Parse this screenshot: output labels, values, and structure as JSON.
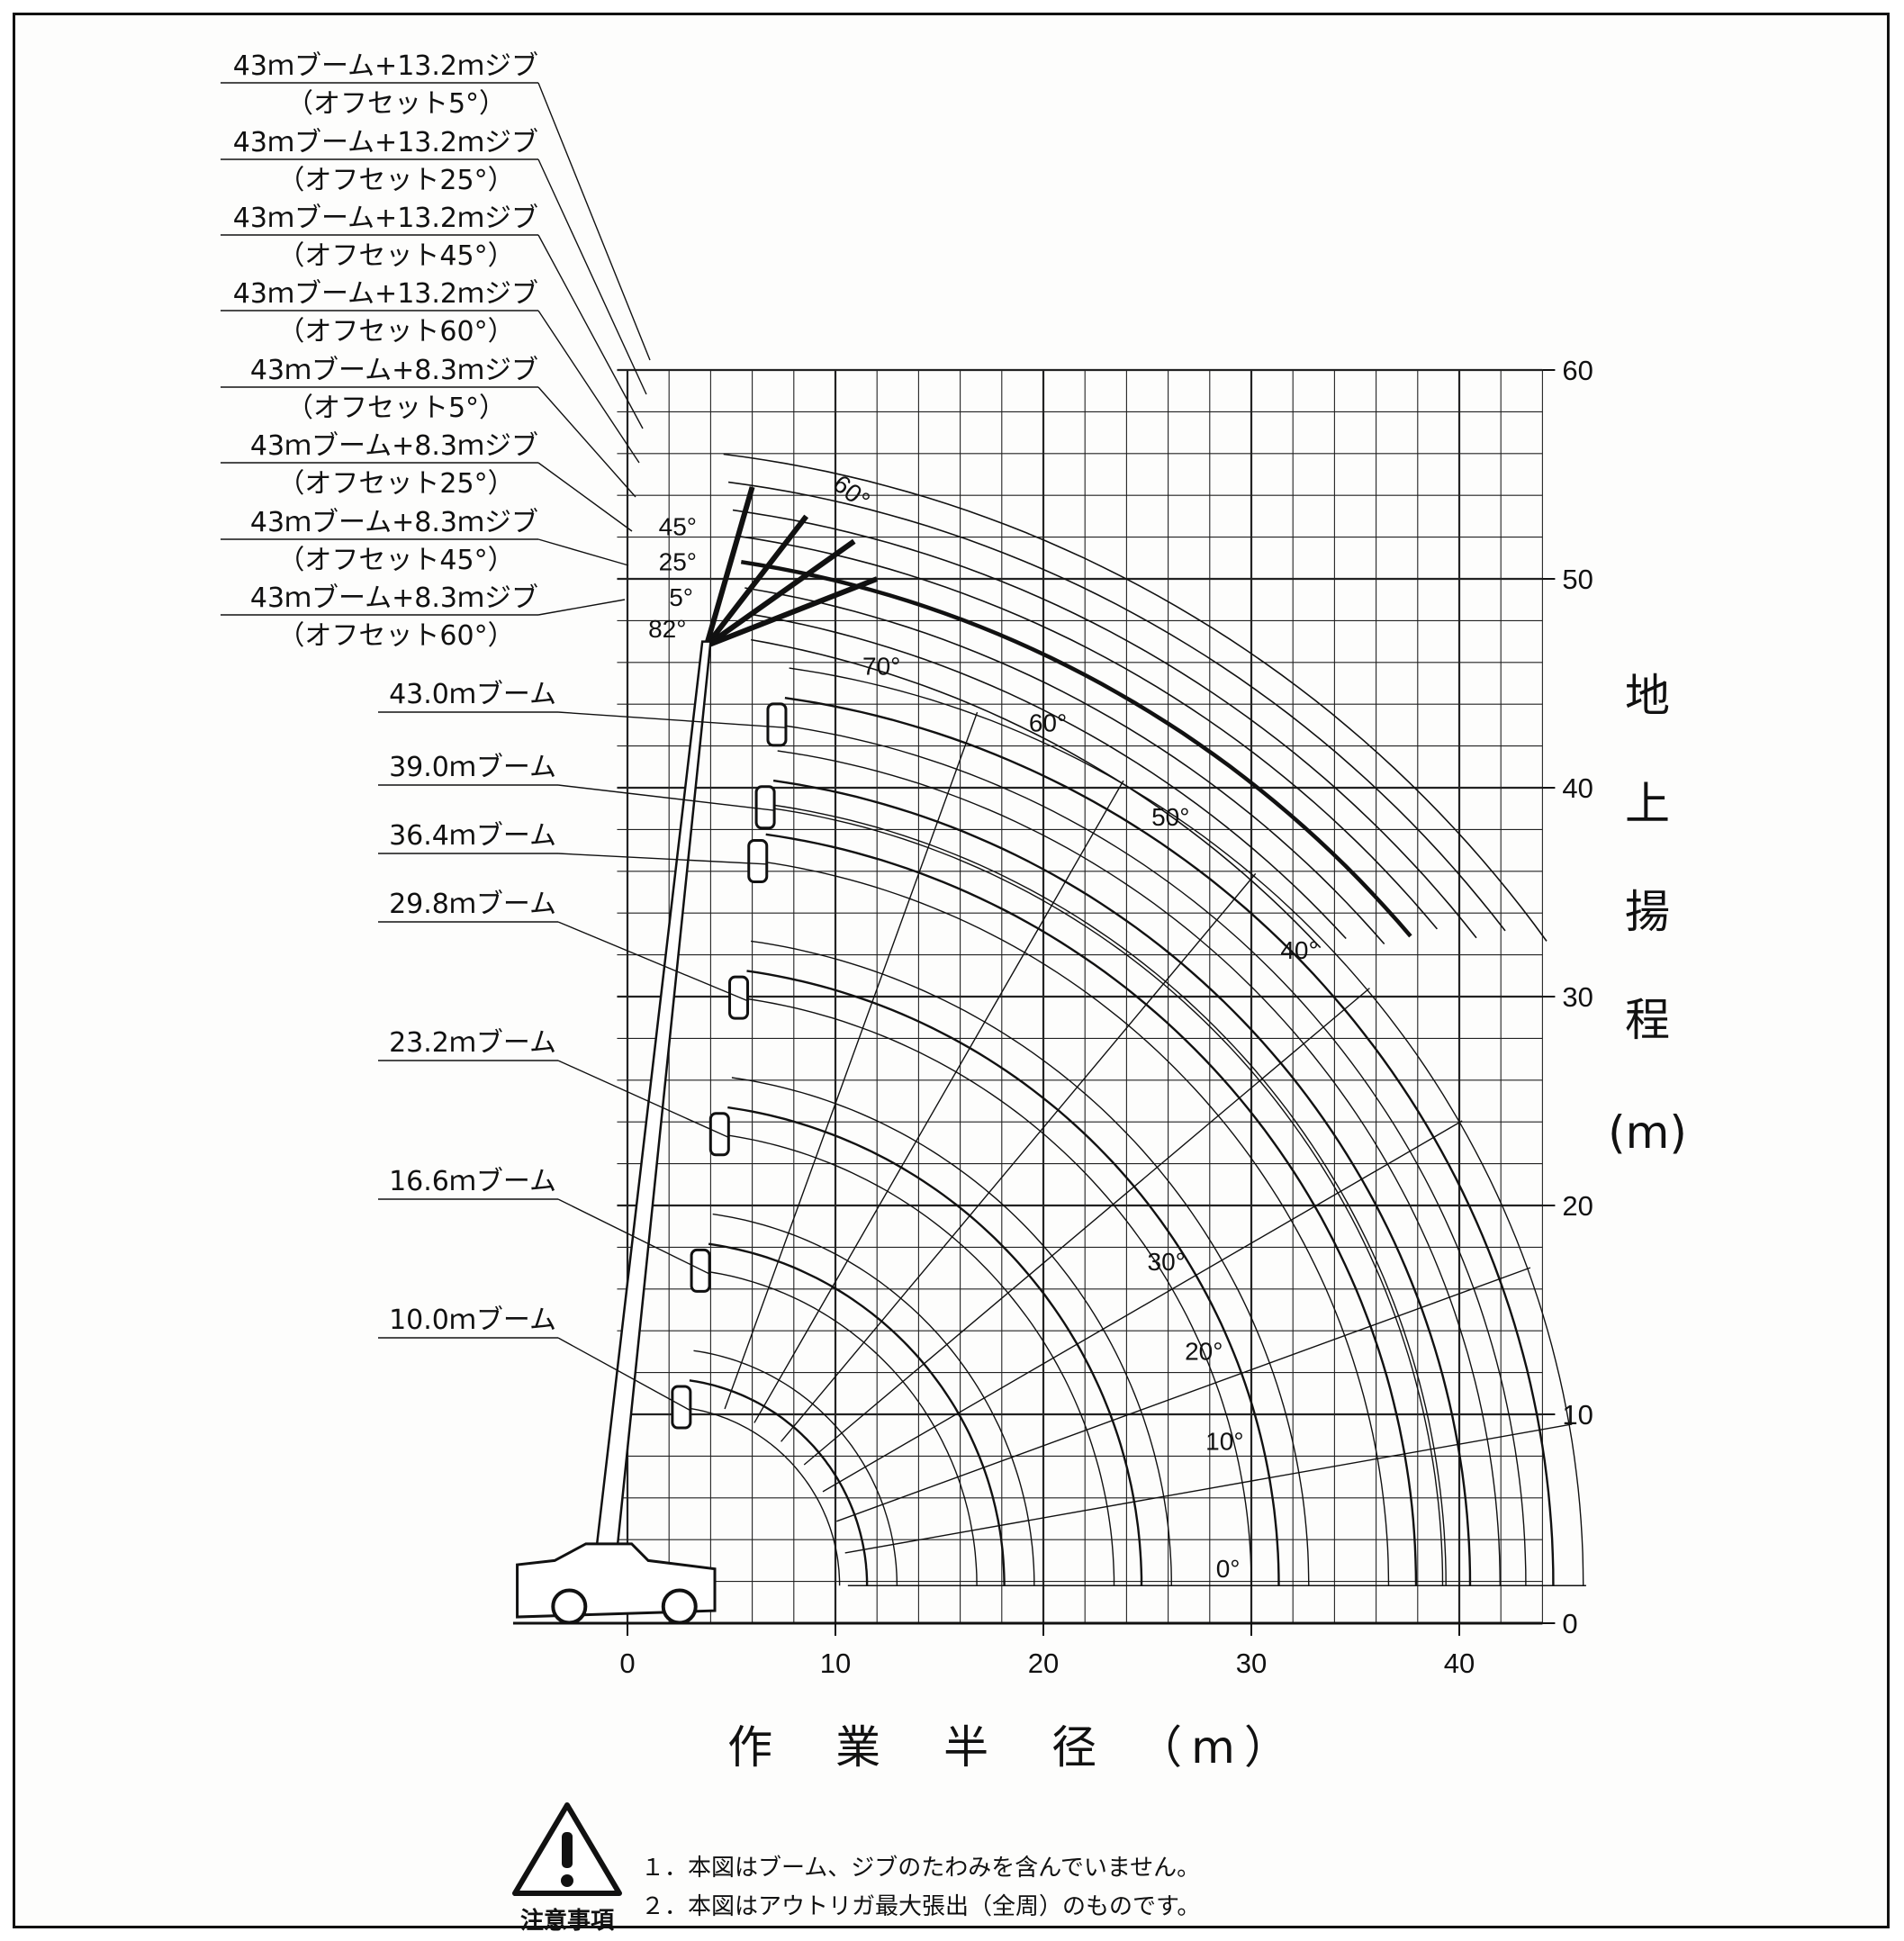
{
  "chart_data": {
    "type": "line",
    "xlabel": "作　業　半　径　（m）",
    "ylabel": [
      "地",
      "上",
      "揚",
      "程",
      "(m)"
    ],
    "x_ticks": [
      0,
      10,
      20,
      30,
      40
    ],
    "y_ticks": [
      0,
      10,
      20,
      30,
      40,
      50,
      60
    ],
    "xlim": [
      -5,
      44
    ],
    "ylim": [
      0,
      60
    ],
    "grid": true,
    "boom_angle_labels": [
      "0°",
      "10°",
      "20°",
      "30°",
      "40°",
      "50°",
      "60°",
      "70°",
      "82°"
    ],
    "offset_angle_labels": [
      "45°",
      "25°",
      "5°"
    ],
    "jib_angle_label": "60°",
    "series": [
      {
        "name": "10.0ｍブーム",
        "length": 10.0
      },
      {
        "name": "16.6ｍブーム",
        "length": 16.6
      },
      {
        "name": "23.2ｍブーム",
        "length": 23.2
      },
      {
        "name": "29.8ｍブーム",
        "length": 29.8
      },
      {
        "name": "36.4ｍブーム",
        "length": 36.4
      },
      {
        "name": "39.0ｍブーム",
        "length": 39.0
      },
      {
        "name": "43.0ｍブーム",
        "length": 43.0
      }
    ],
    "jib_series": [
      {
        "line1": "43ｍブーム+13.2ｍジブ",
        "line2": "（オフセット5°）"
      },
      {
        "line1": "43ｍブーム+13.2ｍジブ",
        "line2": "（オフセット25°）"
      },
      {
        "line1": "43ｍブーム+13.2ｍジブ",
        "line2": "（オフセット45°）"
      },
      {
        "line1": "43ｍブーム+13.2ｍジブ",
        "line2": "（オフセット60°）"
      },
      {
        "line1": "43ｍブーム+8.3ｍジブ",
        "line2": "（オフセット5°）"
      },
      {
        "line1": "43ｍブーム+8.3ｍジブ",
        "line2": "（オフセット25°）"
      },
      {
        "line1": "43ｍブーム+8.3ｍジブ",
        "line2": "（オフセット45°）"
      },
      {
        "line1": "43ｍブーム+8.3ｍジブ",
        "line2": "（オフセット60°）"
      }
    ]
  },
  "notes": {
    "caption": "注意事項",
    "items": [
      "１．本図はブーム、ジブのたわみを含んでいません。",
      "２．本図はアウトリガ最大張出（全周）のものです。"
    ]
  }
}
